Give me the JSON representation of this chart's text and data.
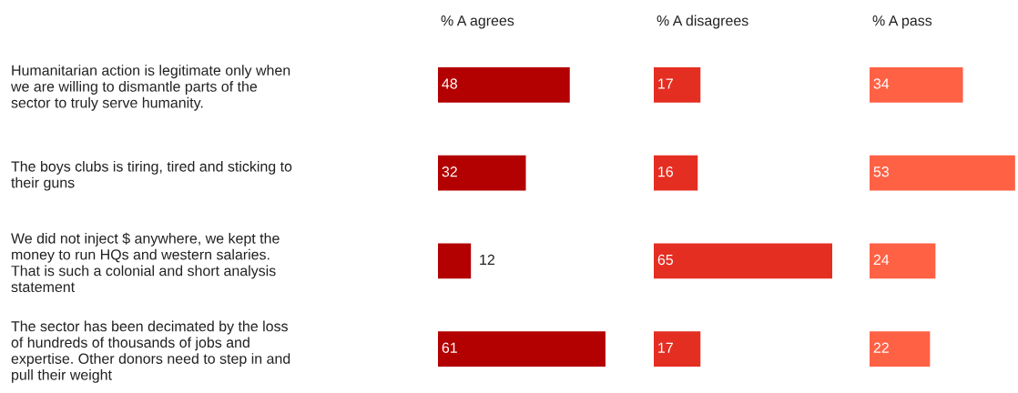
{
  "chart_data": [
    {
      "type": "bar",
      "orientation": "horizontal",
      "title": "% A agrees",
      "categories": [
        "Humanitarian action is legitimate only when\nwe are willing to dismantle parts of the\nsector to truly serve humanity.",
        "The boys clubs is tiring, tired and sticking to\ntheir guns",
        "We did not inject $ anywhere, we kept the\nmoney to run HQs and western salaries.\nThat is such a colonial and short analysis\nstatement",
        "The sector has been decimated by the loss\nof hundreds of thousands of jobs and\nexpertise. Other donors need to step in and\npull their weight"
      ],
      "values": [
        48,
        32,
        12,
        61
      ],
      "color": "#b30000",
      "data_labels": true,
      "tick_labels": "y"
    },
    {
      "type": "bar",
      "orientation": "horizontal",
      "title": "% A disagrees",
      "categories": [
        null,
        null,
        null,
        null
      ],
      "values": [
        17,
        16,
        65,
        17
      ],
      "color": "#e52e22",
      "data_labels": true,
      "tick_labels": false
    },
    {
      "type": "bar",
      "orientation": "horizontal",
      "title": "% A pass",
      "categories": [
        null,
        null,
        null,
        null
      ],
      "values": [
        34,
        53,
        24,
        22
      ],
      "color": "#ff6145",
      "data_labels": true,
      "tick_labels": false
    }
  ]
}
